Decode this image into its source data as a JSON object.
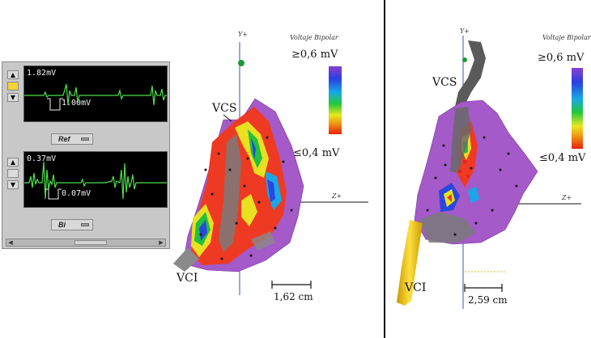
{
  "egm": {
    "top": {
      "amplitude": "1.82mV",
      "scale": "1.00mV",
      "selector": "Ref"
    },
    "bottom": {
      "amplitude": "0.37mV",
      "scale": "0.07mV",
      "selector": "Bi"
    },
    "arrow_up": "▲",
    "arrow_down": "▼",
    "scroll_left": "◀",
    "scroll_right": "▶"
  },
  "map_left": {
    "axis_y": "Y+",
    "axis_z": "Z+",
    "colorbar_title": "Voltaje Bipolar",
    "max_label": "≥0,6 mV",
    "min_label": "≤0,4 mV",
    "label_top": "VCS",
    "label_bottom": "VCI",
    "scale": "1,62 cm"
  },
  "map_right": {
    "axis_y": "Y+",
    "axis_z": "Z+",
    "colorbar_title": "Voltaje Bipolar",
    "max_label": "≥0,6 mV",
    "min_label": "≤0,4 mV",
    "label_top": "VCS",
    "label_bottom": "VCI",
    "scale": "2,59 cm"
  },
  "colors": {
    "high_voltage": "#9a4fc8",
    "low_voltage": "#f0321e",
    "egm_trace": "#4ee04e"
  }
}
